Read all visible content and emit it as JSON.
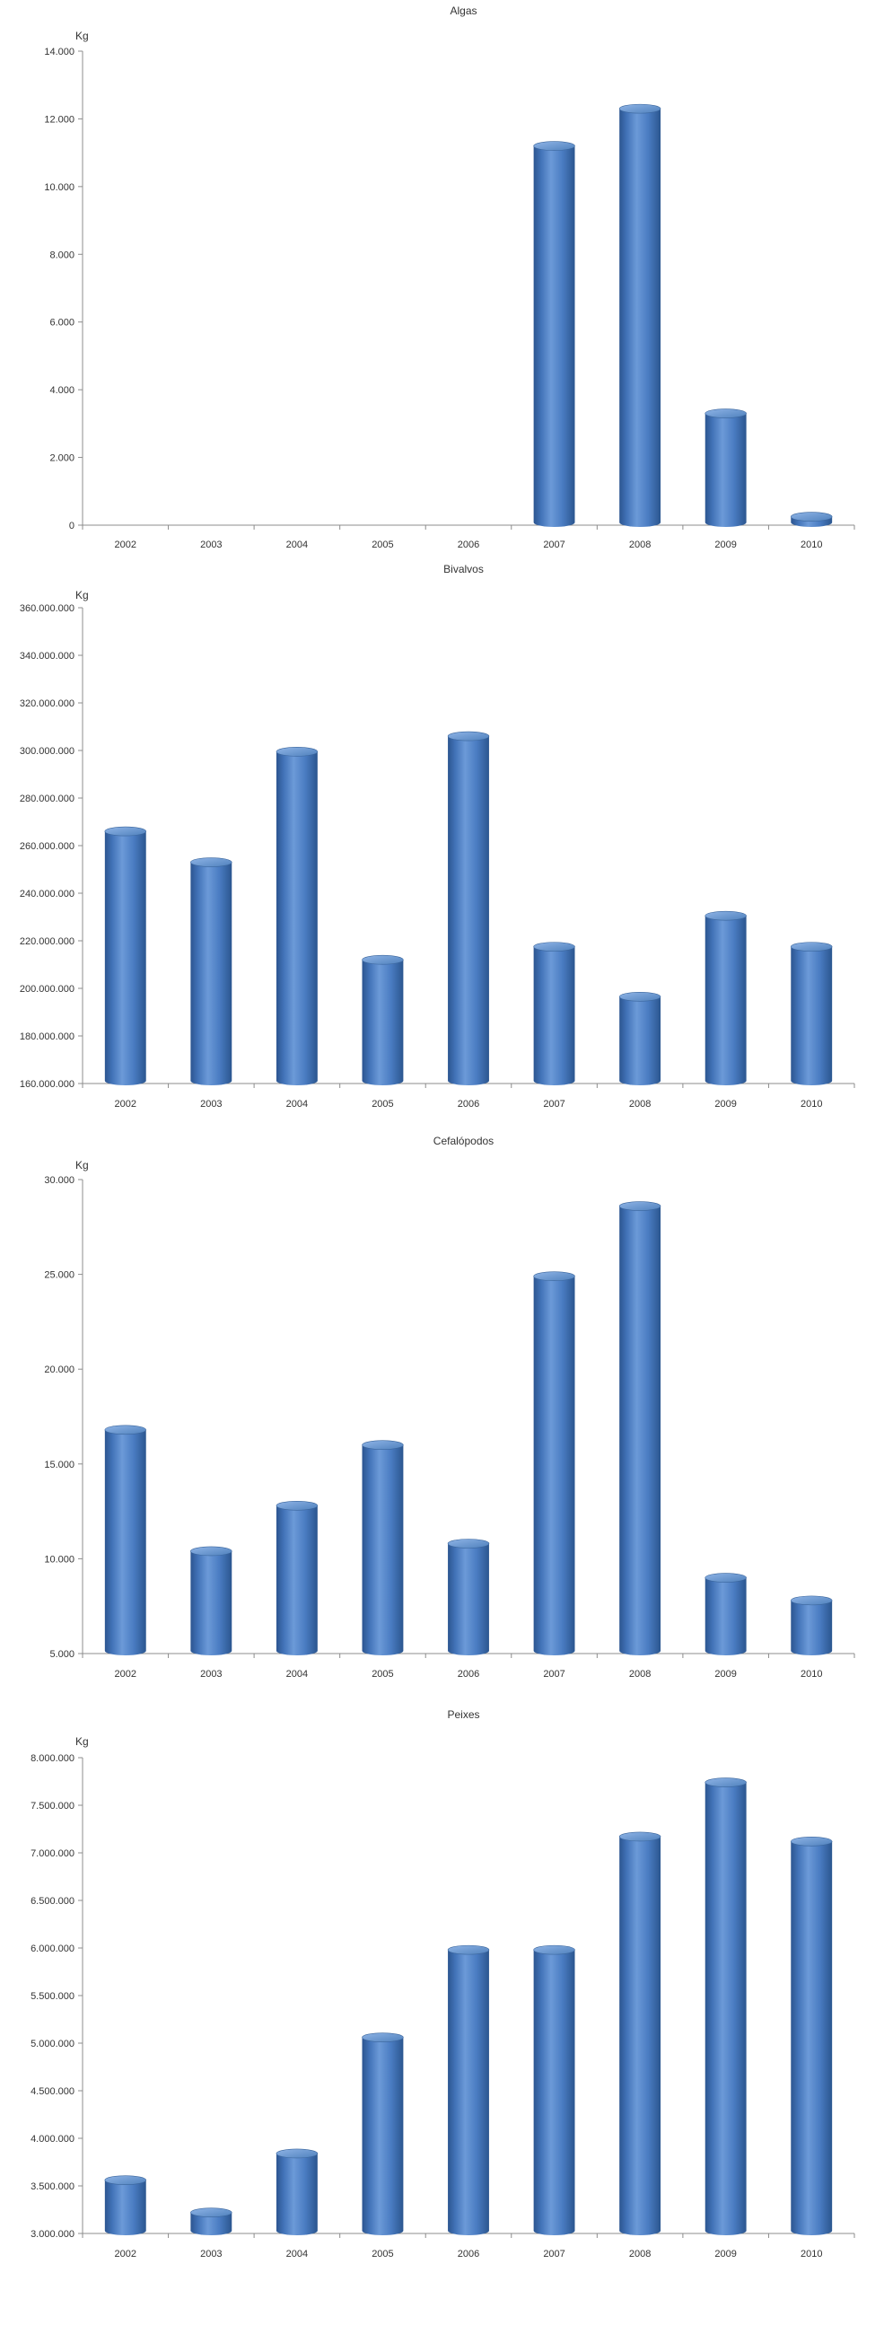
{
  "chart_data": [
    {
      "type": "bar",
      "title": "Algas",
      "ylabel": "Kg",
      "ylim": [
        0,
        14000
      ],
      "yticks": [
        0,
        2000,
        4000,
        6000,
        8000,
        10000,
        12000,
        14000
      ],
      "ytick_labels": [
        "0",
        "2.000",
        "4.000",
        "6.000",
        "8.000",
        "10.000",
        "12.000",
        "14.000"
      ],
      "categories": [
        "2002",
        "2003",
        "2004",
        "2005",
        "2006",
        "2007",
        "2008",
        "2009",
        "2010"
      ],
      "values": [
        0,
        0,
        0,
        0,
        0,
        11200,
        12300,
        3300,
        250
      ],
      "color": "#4f81bd",
      "grid": false,
      "legend": "none"
    },
    {
      "type": "bar",
      "title": "Bivalvos",
      "ylabel": "Kg",
      "ylim": [
        160000000,
        360000000
      ],
      "yticks": [
        160000000,
        180000000,
        200000000,
        220000000,
        240000000,
        260000000,
        280000000,
        300000000,
        320000000,
        340000000,
        360000000
      ],
      "ytick_labels": [
        "160.000.000",
        "180.000.000",
        "200.000.000",
        "220.000.000",
        "240.000.000",
        "260.000.000",
        "280.000.000",
        "300.000.000",
        "320.000.000",
        "340.000.000",
        "360.000.000"
      ],
      "categories": [
        "2002",
        "2003",
        "2004",
        "2005",
        "2006",
        "2007",
        "2008",
        "2009",
        "2010"
      ],
      "values": [
        266000000,
        253000000,
        299500000,
        212000000,
        306000000,
        217500000,
        196500000,
        230500000,
        217500000
      ],
      "color": "#4f81bd",
      "grid": false,
      "legend": "none"
    },
    {
      "type": "bar",
      "title": "Cefalópodos",
      "ylabel": "Kg",
      "ylim": [
        5000,
        30000
      ],
      "yticks": [
        5000,
        10000,
        15000,
        20000,
        25000,
        30000
      ],
      "ytick_labels": [
        "5.000",
        "10.000",
        "15.000",
        "20.000",
        "25.000",
        "30.000"
      ],
      "categories": [
        "2002",
        "2003",
        "2004",
        "2005",
        "2006",
        "2007",
        "2008",
        "2009",
        "2010"
      ],
      "values": [
        16800,
        10400,
        12800,
        16000,
        10800,
        24900,
        28600,
        9000,
        7800
      ],
      "color": "#4f81bd",
      "grid": false,
      "legend": "none"
    },
    {
      "type": "bar",
      "title": "Peixes",
      "ylabel": "Kg",
      "ylim": [
        3000000,
        8000000
      ],
      "yticks": [
        3000000,
        3500000,
        4000000,
        4500000,
        5000000,
        5500000,
        6000000,
        6500000,
        7000000,
        7500000,
        8000000
      ],
      "ytick_labels": [
        "3.000.000",
        "3.500.000",
        "4.000.000",
        "4.500.000",
        "5.000.000",
        "5.500.000",
        "6.000.000",
        "6.500.000",
        "7.000.000",
        "7.500.000",
        "8.000.000"
      ],
      "categories": [
        "2002",
        "2003",
        "2004",
        "2005",
        "2006",
        "2007",
        "2008",
        "2009",
        "2010"
      ],
      "values": [
        3560000,
        3220000,
        3840000,
        5060000,
        5980000,
        5980000,
        7170000,
        7740000,
        7120000
      ],
      "color": "#4f81bd",
      "grid": false,
      "legend": "none"
    }
  ]
}
